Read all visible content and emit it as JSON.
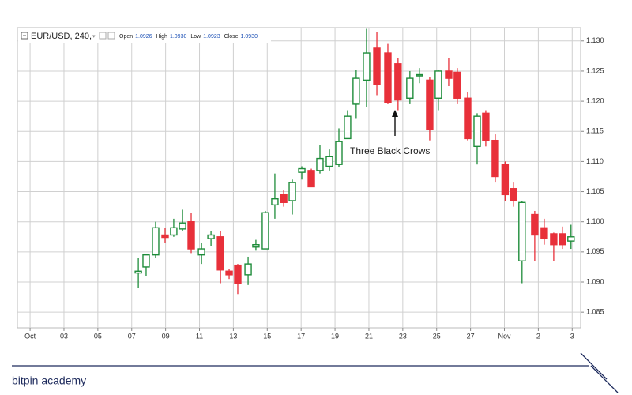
{
  "chart_data": {
    "type": "candlestick",
    "header": {
      "symbol": "EUR/USD, 240,",
      "fields": [
        {
          "label": "Open",
          "value": "1.0926"
        },
        {
          "label": "High",
          "value": "1.0930"
        },
        {
          "label": "Low",
          "value": "1.0923"
        },
        {
          "label": "Close",
          "value": "1.0930"
        }
      ]
    },
    "annotation": "Three Black Crows",
    "x": [
      6.39,
      6.85,
      7.41,
      7.97,
      8.48,
      9.0,
      9.51,
      10.12,
      10.68,
      11.24,
      11.75,
      12.26,
      12.87,
      13.33,
      13.89,
      14.45,
      14.97,
      15.48,
      16.04,
      16.6,
      17.11,
      17.67,
      18.23,
      18.74,
      19.25,
      19.86,
      20.47,
      21.12,
      21.72,
      22.42,
      22.98,
      23.59,
      24.1,
      24.71,
      25.22,
      25.83,
      26.39,
      26.9,
      27.46,
      28.04,
      28.53,
      29.04,
      29.79,
      30.35,
      30.91,
      31.42,
      31.93
    ],
    "open": [
      1.0915,
      1.0925,
      1.0945,
      1.0978,
      1.0978,
      1.0988,
      1.1,
      1.0945,
      1.0972,
      1.0975,
      1.0918,
      1.0928,
      1.0912,
      1.0958,
      1.0955,
      1.1028,
      1.1045,
      1.1035,
      1.1082,
      1.1085,
      1.1085,
      1.1092,
      1.1095,
      1.1138,
      1.1195,
      1.1235,
      1.1288,
      1.128,
      1.1262,
      1.1205,
      1.1242,
      1.1235,
      1.1205,
      1.125,
      1.1248,
      1.1205,
      1.1125,
      1.118,
      1.1135,
      1.1095,
      1.1055,
      1.0935,
      1.1012,
      1.099,
      1.098,
      1.098,
      1.0968
    ],
    "high": [
      1.094,
      1.0945,
      1.1,
      1.099,
      1.1005,
      1.102,
      1.1015,
      1.0965,
      1.0985,
      1.0985,
      1.0922,
      1.093,
      1.0942,
      1.097,
      1.1018,
      1.108,
      1.1052,
      1.107,
      1.1092,
      1.1088,
      1.1128,
      1.112,
      1.1155,
      1.1185,
      1.1252,
      1.132,
      1.1315,
      1.1295,
      1.1272,
      1.125,
      1.1255,
      1.124,
      1.1252,
      1.1272,
      1.1255,
      1.1215,
      1.118,
      1.1185,
      1.1145,
      1.11,
      1.1065,
      1.1035,
      1.1018,
      1.1005,
      1.0982,
      1.0992,
      1.0995
    ],
    "low": [
      1.089,
      1.091,
      1.094,
      1.0965,
      1.0975,
      1.0985,
      1.0948,
      1.093,
      1.096,
      1.0898,
      1.0905,
      1.088,
      1.0895,
      1.0952,
      1.0955,
      1.1005,
      1.1025,
      1.1012,
      1.107,
      1.1058,
      1.108,
      1.1085,
      1.109,
      1.114,
      1.1172,
      1.119,
      1.121,
      1.1195,
      1.1185,
      1.1195,
      1.123,
      1.1135,
      1.1185,
      1.1225,
      1.1195,
      1.1135,
      1.1095,
      1.1125,
      1.1065,
      1.1035,
      1.1025,
      1.0898,
      1.0935,
      1.0962,
      1.0935,
      1.0955,
      1.0955
    ],
    "close": [
      1.0918,
      1.0945,
      1.099,
      1.0974,
      1.099,
      1.0998,
      1.0955,
      1.0955,
      1.0978,
      1.092,
      1.0912,
      1.0898,
      1.093,
      1.0962,
      1.1015,
      1.1038,
      1.1032,
      1.1065,
      1.1088,
      1.1058,
      1.1105,
      1.1108,
      1.1133,
      1.1175,
      1.1238,
      1.128,
      1.1228,
      1.1198,
      1.1202,
      1.1238,
      1.1244,
      1.1153,
      1.125,
      1.1238,
      1.1205,
      1.1138,
      1.1175,
      1.1135,
      1.1075,
      1.1045,
      1.1035,
      1.1032,
      1.0978,
      1.0972,
      1.0962,
      1.0962,
      1.0975
    ],
    "up_color": "#1e8c3a",
    "down_color": "#e8303a",
    "xlim": [
      -0.75,
      32.5
    ],
    "xticks": [
      {
        "value": 0,
        "label": "Oct"
      },
      {
        "value": 2,
        "label": "03"
      },
      {
        "value": 4,
        "label": "05"
      },
      {
        "value": 6,
        "label": "07"
      },
      {
        "value": 8,
        "label": "09"
      },
      {
        "value": 10,
        "label": "11"
      },
      {
        "value": 12,
        "label": "13"
      },
      {
        "value": 14,
        "label": "15"
      },
      {
        "value": 16,
        "label": "17"
      },
      {
        "value": 18,
        "label": "19"
      },
      {
        "value": 20,
        "label": "21"
      },
      {
        "value": 22,
        "label": "23"
      },
      {
        "value": 24,
        "label": "25"
      },
      {
        "value": 26,
        "label": "27"
      },
      {
        "value": 28,
        "label": "Nov"
      },
      {
        "value": 30,
        "label": "2"
      },
      {
        "value": 32,
        "label": "3"
      }
    ],
    "ylim": [
      1.0824,
      1.1322
    ],
    "yticks": [
      1.085,
      {
        "value": 1.09,
        "label": "1.090"
      },
      1.095,
      {
        "value": 1.1,
        "label": "1.100"
      },
      1.105,
      {
        "value": 1.11,
        "label": "1.110"
      },
      1.115,
      {
        "value": 1.12,
        "label": "1.120"
      },
      1.125,
      {
        "value": 1.13,
        "label": "1.130"
      }
    ],
    "grid": true
  },
  "footer": "bitpin academy"
}
